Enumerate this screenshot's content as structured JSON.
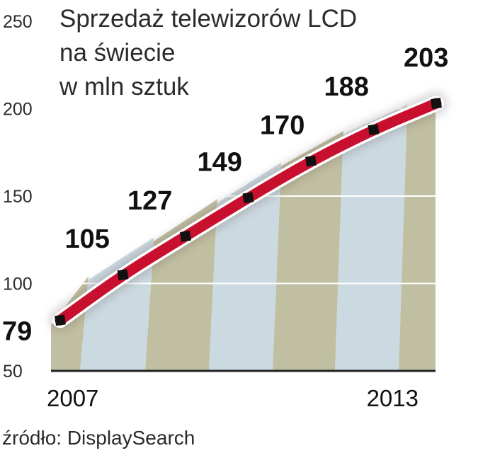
{
  "chart_data": {
    "type": "area",
    "title_lines": [
      "Sprzedaż telewizorów LCD",
      "na świecie",
      "w mln sztuk"
    ],
    "source": "źródło: DisplaySearch",
    "x_tick_labels": [
      "2007",
      "2013"
    ],
    "y_ticks": [
      50,
      100,
      150,
      200,
      250
    ],
    "ylim": [
      50,
      250
    ],
    "grid": true,
    "series": [
      {
        "values": [
          79,
          105,
          127,
          149,
          170,
          188,
          203
        ],
        "labels": [
          "79",
          "105",
          "127",
          "149",
          "170",
          "188",
          "203"
        ]
      }
    ],
    "colors": {
      "line": "#c8102e",
      "line_outline": "#ffffff",
      "marker": "#111111",
      "band_dark": "#b6b491",
      "band_light": "#c2d2dc",
      "axis": "#222222",
      "grid": "#ffffff"
    }
  }
}
